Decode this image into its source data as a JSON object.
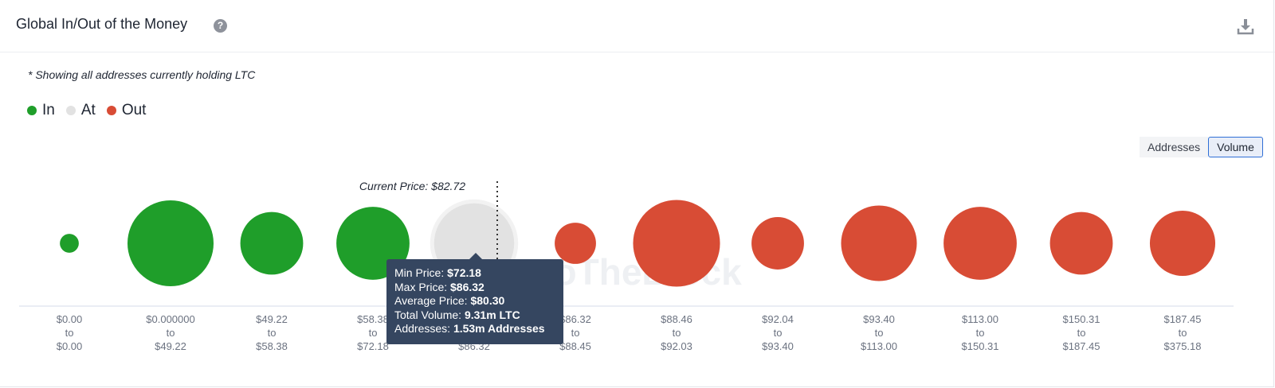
{
  "header": {
    "title": "Global In/Out of the Money",
    "help_icon": "question-circle-icon",
    "download_icon": "download-icon"
  },
  "note": "* Showing all addresses currently holding LTC",
  "legend": [
    {
      "label": "In",
      "color": "#1f9e2a"
    },
    {
      "label": "At",
      "color": "#e2e2e2"
    },
    {
      "label": "Out",
      "color": "#d84c35"
    }
  ],
  "toggle": {
    "addresses": "Addresses",
    "volume": "Volume",
    "active": "Volume"
  },
  "current_price_label": "Current Price: $82.72",
  "tooltip": {
    "min_label": "Min Price:",
    "min_value": "$72.18",
    "max_label": "Max Price:",
    "max_value": "$86.32",
    "avg_label": "Average Price:",
    "avg_value": "$80.30",
    "vol_label": "Total Volume:",
    "vol_value": "9.31m LTC",
    "addr_label": "Addresses:",
    "addr_value": "1.53m Addresses"
  },
  "chart_data": {
    "type": "bubble",
    "metric": "Volume",
    "current_price": 82.72,
    "categories": [
      {
        "from": "$0.00",
        "to": "$0.00",
        "status": "In",
        "relative_size": 0.22
      },
      {
        "from": "$0.000000",
        "to": "$49.22",
        "status": "In",
        "relative_size": 1.0
      },
      {
        "from": "$49.22",
        "to": "$58.38",
        "status": "In",
        "relative_size": 0.73
      },
      {
        "from": "$58.38",
        "to": "$72.18",
        "status": "In",
        "relative_size": 0.85
      },
      {
        "from": "$72.18",
        "to": "$86.32",
        "status": "At",
        "relative_size": 0.93
      },
      {
        "from": "$86.32",
        "to": "$88.45",
        "status": "Out",
        "relative_size": 0.48
      },
      {
        "from": "$88.46",
        "to": "$92.03",
        "status": "Out",
        "relative_size": 1.01
      },
      {
        "from": "$92.04",
        "to": "$93.40",
        "status": "Out",
        "relative_size": 0.61
      },
      {
        "from": "$93.40",
        "to": "$113.00",
        "status": "Out",
        "relative_size": 0.88
      },
      {
        "from": "$113.00",
        "to": "$150.31",
        "status": "Out",
        "relative_size": 0.85
      },
      {
        "from": "$150.31",
        "to": "$187.45",
        "status": "Out",
        "relative_size": 0.73
      },
      {
        "from": "$187.45",
        "to": "$375.18",
        "status": "Out",
        "relative_size": 0.76
      }
    ]
  }
}
